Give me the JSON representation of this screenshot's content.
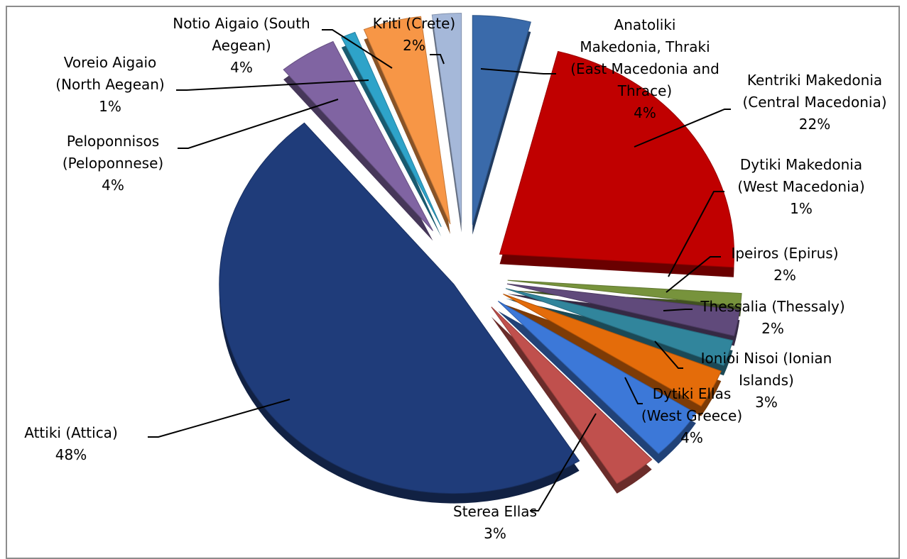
{
  "chart_data": {
    "type": "pie",
    "style": "exploded 3D pie",
    "legend": "none",
    "slices": [
      {
        "name": "Anatoliki Makedonia, Thraki (East Macedonia and Thrace)",
        "label_lines": [
          "Anatoliki",
          "Makedonia, Thraki",
          "(East Macedonia and",
          "Thrace)"
        ],
        "percent_label": "4%",
        "value": 4,
        "color": "#3a6aaa"
      },
      {
        "name": "Kentriki Makedonia (Central Macedonia)",
        "label_lines": [
          "Kentriki Makedonia",
          "(Central Macedonia)"
        ],
        "percent_label": "22%",
        "value": 22,
        "color": "#c00000"
      },
      {
        "name": "Dytiki Makedonia (West  Macedonia)",
        "label_lines": [
          "Dytiki Makedonia",
          "(West  Macedonia)"
        ],
        "percent_label": "1%",
        "value": 1,
        "color": "#77933c"
      },
      {
        "name": "Ipeiros (Epirus)",
        "label_lines": [
          "Ipeiros (Epirus)"
        ],
        "percent_label": "2%",
        "value": 2,
        "color": "#604a7b"
      },
      {
        "name": "Thessalia (Thessaly)",
        "label_lines": [
          "Thessalia (Thessaly)"
        ],
        "percent_label": "2%",
        "value": 2,
        "color": "#31859c"
      },
      {
        "name": "Ionioi Nisoi (Ionian Islands)",
        "label_lines": [
          "Ionioi Nisoi (Ionian",
          "Islands)"
        ],
        "percent_label": "3%",
        "value": 3,
        "color": "#e46c0a"
      },
      {
        "name": "Dytiki Ellas (West Greece)",
        "label_lines": [
          "Dytiki Ellas",
          "(West Greece)"
        ],
        "percent_label": "4%",
        "value": 4,
        "color": "#3c78d8"
      },
      {
        "name": "Sterea Ellas",
        "label_lines": [
          "Sterea Ellas"
        ],
        "percent_label": "3%",
        "value": 3,
        "color": "#c0504d"
      },
      {
        "name": "Attiki (Attica)",
        "label_lines": [
          "Attiki (Attica)"
        ],
        "percent_label": "48%",
        "value": 48,
        "color": "#1f3c7a"
      },
      {
        "name": "Peloponnisos (Peloponnese)",
        "label_lines": [
          "Peloponnisos",
          "(Peloponnese)"
        ],
        "percent_label": "4%",
        "value": 4,
        "color": "#8064a2"
      },
      {
        "name": "Voreio Aigaio (North Aegean)",
        "label_lines": [
          "Voreio Aigaio",
          "(North Aegean)"
        ],
        "percent_label": "1%",
        "value": 1,
        "color": "#2ea3c9"
      },
      {
        "name": "Notio Aigaio (South Aegean)",
        "label_lines": [
          "Notio Aigaio (South",
          "Aegean)"
        ],
        "percent_label": "4%",
        "value": 4,
        "color": "#f79646"
      },
      {
        "name": "Kriti (Crete)",
        "label_lines": [
          "Kriti (Crete)"
        ],
        "percent_label": "2%",
        "value": 2,
        "color": "#a5b8d9"
      }
    ]
  }
}
